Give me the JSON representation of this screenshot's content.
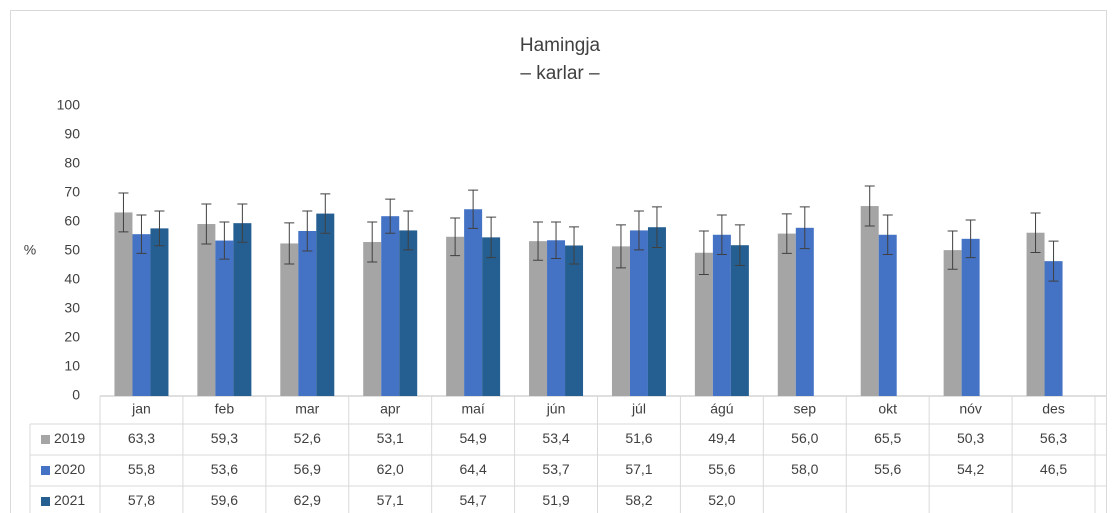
{
  "chart_data": {
    "type": "bar",
    "title": "Hamingja",
    "subtitle": "– karlar –",
    "y_label": "%",
    "categories": [
      "jan",
      "feb",
      "mar",
      "apr",
      "maí",
      "jún",
      "júl",
      "ágú",
      "sep",
      "okt",
      "nóv",
      "des"
    ],
    "series": [
      {
        "name": "2019",
        "color": "#a5a5a5",
        "values": [
          63.3,
          59.3,
          52.6,
          53.1,
          54.9,
          53.4,
          51.6,
          49.4,
          56.0,
          65.5,
          50.3,
          56.3
        ],
        "value_labels": [
          "63,3",
          "59,3",
          "52,6",
          "53,1",
          "54,9",
          "53,4",
          "51,6",
          "49,4",
          "56,0",
          "65,5",
          "50,3",
          "56,3"
        ],
        "errors": [
          6.7,
          6.9,
          7.1,
          6.9,
          6.5,
          6.6,
          7.4,
          7.5,
          6.8,
          6.9,
          6.6,
          6.8
        ]
      },
      {
        "name": "2020",
        "color": "#4472c4",
        "values": [
          55.8,
          53.6,
          56.9,
          62.0,
          64.4,
          53.7,
          57.1,
          55.6,
          58.0,
          55.6,
          54.2,
          46.5
        ],
        "value_labels": [
          "55,8",
          "53,6",
          "56,9",
          "62,0",
          "64,4",
          "53,7",
          "57,1",
          "55,6",
          "58,0",
          "55,6",
          "54,2",
          "46,5"
        ],
        "errors": [
          6.6,
          6.4,
          6.9,
          5.9,
          6.6,
          6.3,
          6.7,
          6.8,
          7.2,
          6.8,
          6.5,
          6.9
        ]
      },
      {
        "name": "2021",
        "color": "#255e91",
        "values": [
          57.8,
          59.6,
          62.9,
          57.1,
          54.7,
          51.9,
          58.2,
          52.0,
          null,
          null,
          null,
          null
        ],
        "value_labels": [
          "57,8",
          "59,6",
          "62,9",
          "57,1",
          "54,7",
          "51,9",
          "58,2",
          "52,0",
          null,
          null,
          null,
          null
        ],
        "errors": [
          6.0,
          6.6,
          6.8,
          6.7,
          7.0,
          6.4,
          7.0,
          7.0,
          null,
          null,
          null,
          null
        ]
      }
    ],
    "ylim": [
      0,
      100
    ],
    "yticks": [
      0,
      10,
      20,
      30,
      40,
      50,
      60,
      70,
      80,
      90,
      100
    ],
    "grid": false
  }
}
